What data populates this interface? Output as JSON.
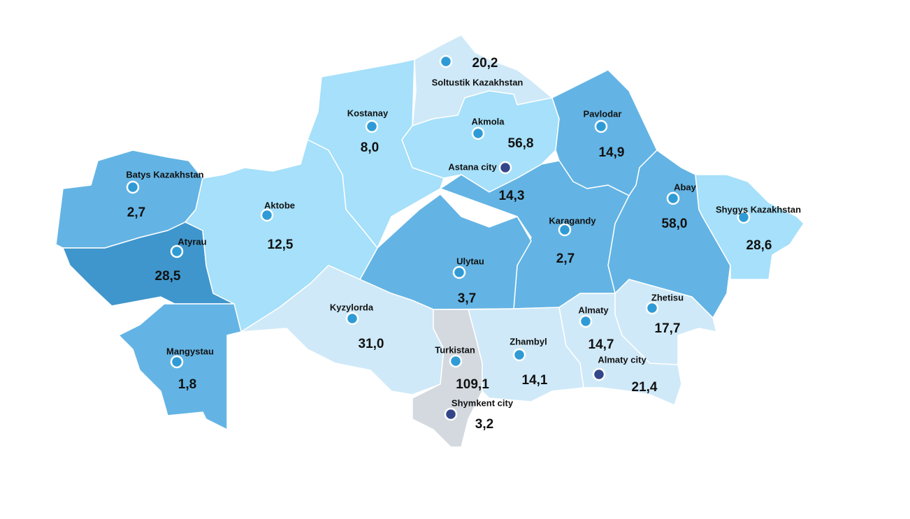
{
  "map": {
    "regions": [
      {
        "name": "Soltustik Kazakhstan",
        "value": "20,2"
      },
      {
        "name": "Kostanay",
        "value": "8,0"
      },
      {
        "name": "Akmola",
        "value": "56,8"
      },
      {
        "name": "Astana city",
        "value": "14,3"
      },
      {
        "name": "Pavlodar",
        "value": "14,9"
      },
      {
        "name": "Abay",
        "value": "58,0"
      },
      {
        "name": "Shygys Kazakhstan",
        "value": "28,6"
      },
      {
        "name": "Karagandy",
        "value": "2,7"
      },
      {
        "name": "Ulytau",
        "value": "3,7"
      },
      {
        "name": "Batys Kazakhstan",
        "value": "2,7"
      },
      {
        "name": "Atyrau",
        "value": "28,5"
      },
      {
        "name": "Aktobe",
        "value": "12,5"
      },
      {
        "name": "Mangystau",
        "value": "1,8"
      },
      {
        "name": "Kyzylorda",
        "value": "31,0"
      },
      {
        "name": "Turkistan",
        "value": "109,1"
      },
      {
        "name": "Shymkent city",
        "value": "3,2"
      },
      {
        "name": "Zhambyl",
        "value": "14,1"
      },
      {
        "name": "Almaty",
        "value": "14,7"
      },
      {
        "name": "Almaty city",
        "value": "21,4"
      },
      {
        "name": "Zhetisu",
        "value": "17,7"
      }
    ]
  }
}
